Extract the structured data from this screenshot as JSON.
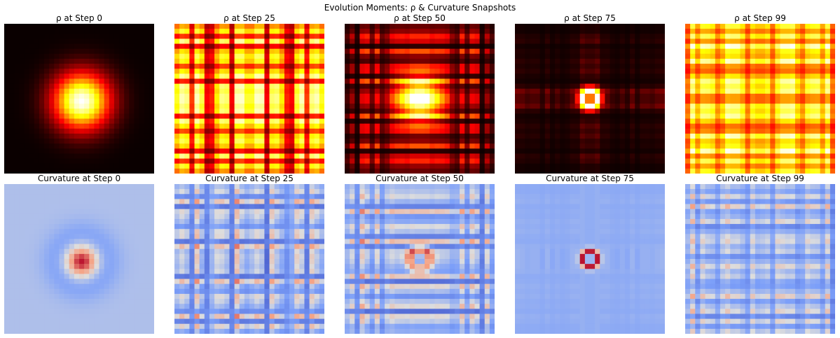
{
  "figure": {
    "title": "Evolution Moments: ρ & Curvature Snapshots"
  },
  "chart_data": [
    {
      "type": "heatmap",
      "title": "ρ at Step 0",
      "colormap": "hot",
      "grid": false,
      "axes": "off",
      "grid_size": 30,
      "pattern": "gaussian-blob",
      "center": [
        15,
        15
      ]
    },
    {
      "type": "heatmap",
      "title": "ρ at Step 25",
      "colormap": "hot",
      "grid": false,
      "axes": "off",
      "grid_size": 30,
      "pattern": "separable-stripes",
      "seed": 25
    },
    {
      "type": "heatmap",
      "title": "ρ at Step 50",
      "colormap": "hot",
      "grid": false,
      "axes": "off",
      "grid_size": 30,
      "pattern": "separable-stripes-central-blob",
      "seed": 50
    },
    {
      "type": "heatmap",
      "title": "ρ at Step 75",
      "colormap": "hot",
      "grid": false,
      "axes": "off",
      "grid_size": 30,
      "pattern": "central-ring-cross",
      "seed": 75
    },
    {
      "type": "heatmap",
      "title": "ρ at Step 99",
      "colormap": "hot",
      "grid": false,
      "axes": "off",
      "grid_size": 30,
      "pattern": "separable-dense",
      "seed": 99
    },
    {
      "type": "heatmap",
      "title": "Curvature at Step 0",
      "colormap": "coolwarm",
      "grid": false,
      "axes": "off",
      "grid_size": 30,
      "pattern": "laplacian-ring"
    },
    {
      "type": "heatmap",
      "title": "Curvature at Step 25",
      "colormap": "coolwarm",
      "grid": false,
      "axes": "off",
      "grid_size": 30,
      "pattern": "stripe-edges",
      "seed": 25
    },
    {
      "type": "heatmap",
      "title": "Curvature at Step 50",
      "colormap": "coolwarm",
      "grid": false,
      "axes": "off",
      "grid_size": 30,
      "pattern": "stripe-edges-center",
      "seed": 50
    },
    {
      "type": "heatmap",
      "title": "Curvature at Step 75",
      "colormap": "coolwarm",
      "grid": false,
      "axes": "off",
      "grid_size": 30,
      "pattern": "center-ring-cross",
      "seed": 75
    },
    {
      "type": "heatmap",
      "title": "Curvature at Step 99",
      "colormap": "coolwarm",
      "grid": false,
      "axes": "off",
      "grid_size": 30,
      "pattern": "stripe-edges-dense",
      "seed": 99
    }
  ]
}
